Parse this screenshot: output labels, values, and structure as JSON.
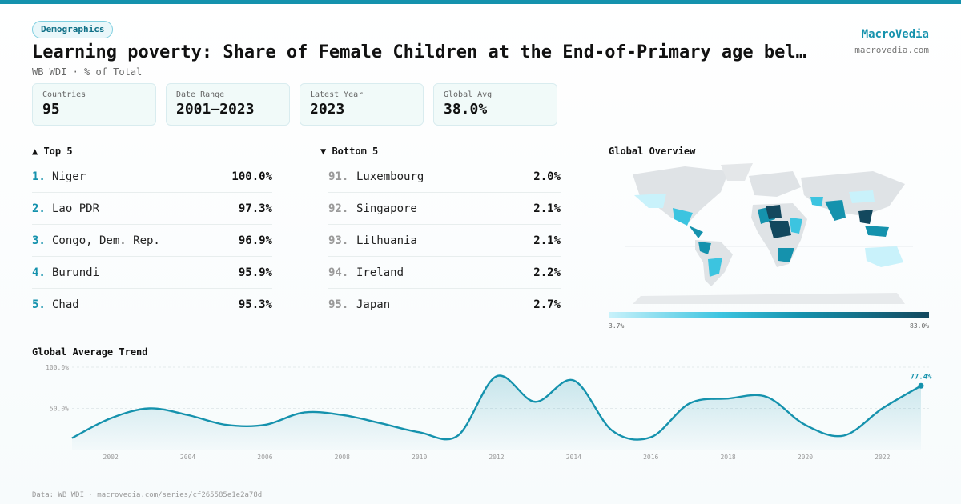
{
  "header": {
    "badge": "Demographics",
    "title": "Learning poverty: Share of Female Children at the End-of-Primary age bel…",
    "subtitle": "WB WDI · % of Total",
    "brand_name": "MacroVedia",
    "brand_url": "macrovedia.com"
  },
  "stats": [
    {
      "label": "Countries",
      "value": "95"
    },
    {
      "label": "Date Range",
      "value": "2001–2023"
    },
    {
      "label": "Latest Year",
      "value": "2023"
    },
    {
      "label": "Global Avg",
      "value": "38.0%"
    }
  ],
  "top5": {
    "title": "▲ Top 5",
    "items": [
      {
        "rank": "1.",
        "name": "Niger",
        "value": "100.0%"
      },
      {
        "rank": "2.",
        "name": "Lao PDR",
        "value": "97.3%"
      },
      {
        "rank": "3.",
        "name": "Congo, Dem. Rep.",
        "value": "96.9%"
      },
      {
        "rank": "4.",
        "name": "Burundi",
        "value": "95.9%"
      },
      {
        "rank": "5.",
        "name": "Chad",
        "value": "95.3%"
      }
    ]
  },
  "bottom5": {
    "title": "▼ Bottom 5",
    "items": [
      {
        "rank": "91.",
        "name": "Luxembourg",
        "value": "2.0%"
      },
      {
        "rank": "92.",
        "name": "Singapore",
        "value": "2.1%"
      },
      {
        "rank": "93.",
        "name": "Lithuania",
        "value": "2.1%"
      },
      {
        "rank": "94.",
        "name": "Ireland",
        "value": "2.2%"
      },
      {
        "rank": "95.",
        "name": "Japan",
        "value": "2.7%"
      }
    ]
  },
  "map": {
    "title": "Global Overview",
    "scale_min": "3.7%",
    "scale_max": "83.0%",
    "colors": [
      "#c9f2fb",
      "#3cc4e0",
      "#1592ad",
      "#13485e"
    ]
  },
  "chart_data": {
    "type": "area",
    "title": "Global Average Trend",
    "x": [
      2001,
      2002,
      2003,
      2004,
      2005,
      2006,
      2007,
      2008,
      2009,
      2010,
      2011,
      2012,
      2013,
      2014,
      2015,
      2016,
      2017,
      2018,
      2019,
      2020,
      2021,
      2022,
      2023
    ],
    "values": [
      14,
      38,
      50,
      42,
      30,
      30,
      45,
      42,
      32,
      21,
      17,
      89,
      58,
      84,
      23,
      15,
      56,
      62,
      64,
      30,
      17,
      50,
      77.4
    ],
    "x_ticks": [
      "2002",
      "2004",
      "2006",
      "2008",
      "2010",
      "2012",
      "2014",
      "2016",
      "2018",
      "2020",
      "2022"
    ],
    "y_ticks": [
      "100.0%",
      "50.0%"
    ],
    "ylim": [
      0,
      100
    ],
    "last_label": "77.4%",
    "color": "#1592ad",
    "grid": true
  },
  "footer": "Data: WB WDI · macrovedia.com/series/cf265585e1e2a78d"
}
